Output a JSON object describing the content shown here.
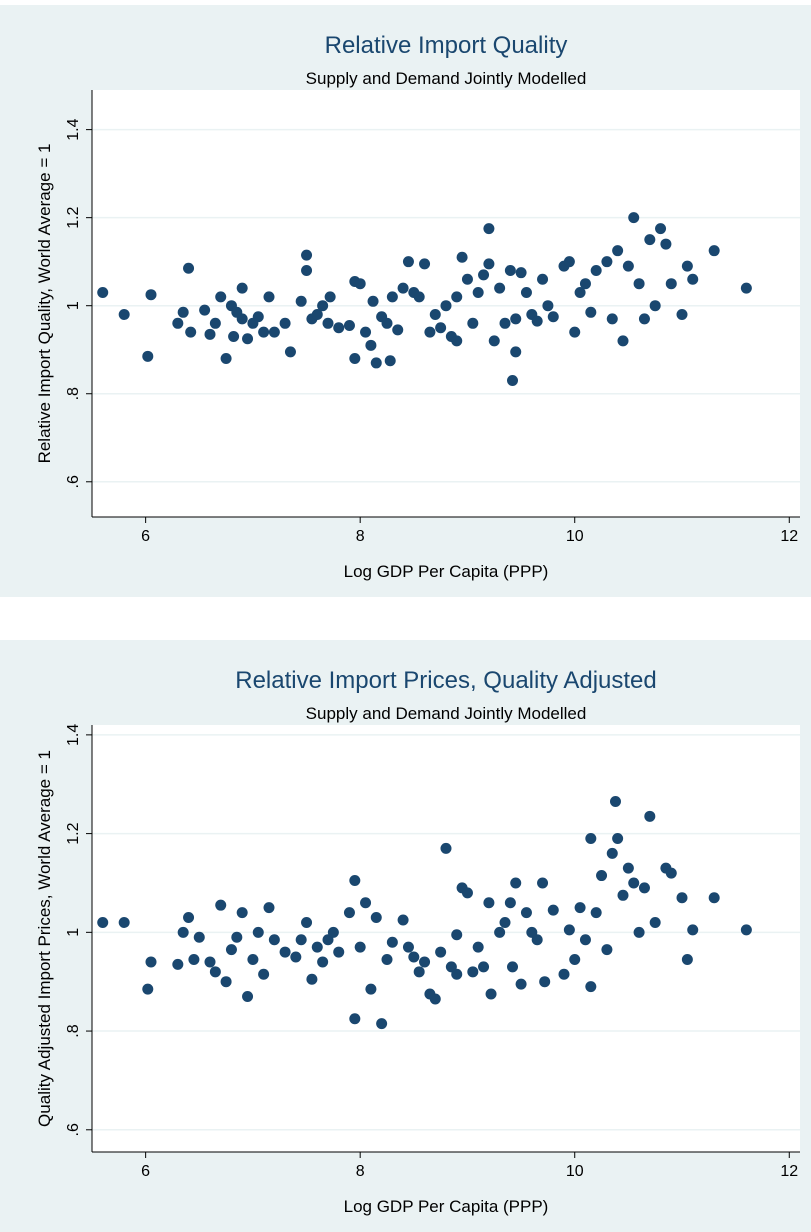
{
  "chart_data": [
    {
      "type": "scatter",
      "title": "Relative Import Quality",
      "subtitle": "Supply and Demand Jointly Modelled",
      "x_label": "Log GDP Per Capita (PPP)",
      "y_label": "Relative Import Quality, World Average = 1",
      "color": "#1a476f",
      "grid": true,
      "xlim": [
        5.5,
        12.1
      ],
      "xticks": [
        6,
        8,
        10,
        12
      ],
      "ylim": [
        0.52,
        1.49
      ],
      "yticks": [
        {
          "value": 0.6,
          "label": ".6"
        },
        {
          "value": 0.8,
          "label": ".8"
        },
        1,
        {
          "value": 1.2,
          "label": "1.2"
        },
        {
          "value": 1.4,
          "label": "1.4"
        }
      ],
      "x": [
        5.6,
        5.8,
        6.02,
        6.05,
        6.3,
        6.35,
        6.4,
        6.42,
        6.55,
        6.6,
        6.65,
        6.7,
        6.75,
        6.8,
        6.82,
        6.85,
        6.9,
        6.9,
        6.95,
        7.0,
        7.05,
        7.1,
        7.15,
        7.2,
        7.3,
        7.35,
        7.45,
        7.5,
        7.5,
        7.55,
        7.6,
        7.65,
        7.7,
        7.72,
        7.8,
        7.9,
        7.95,
        7.95,
        8.0,
        8.05,
        8.1,
        8.12,
        8.15,
        8.2,
        8.25,
        8.28,
        8.3,
        8.35,
        8.4,
        8.45,
        8.5,
        8.55,
        8.6,
        8.65,
        8.7,
        8.75,
        8.8,
        8.85,
        8.9,
        8.95,
        9.0,
        9.05,
        9.1,
        9.15,
        9.2,
        9.2,
        9.25,
        9.3,
        9.35,
        9.4,
        9.42,
        9.45,
        9.5,
        9.55,
        9.6,
        9.65,
        9.7,
        9.75,
        9.8,
        9.9,
        9.95,
        10.0,
        10.05,
        10.1,
        10.15,
        10.2,
        10.3,
        10.35,
        10.4,
        10.45,
        10.5,
        10.55,
        10.6,
        10.65,
        10.7,
        10.75,
        10.8,
        10.85,
        10.9,
        11.0,
        11.05,
        11.3,
        11.6,
        11.1,
        8.9,
        9.45
      ],
      "values": [
        1.03,
        0.98,
        0.885,
        1.025,
        0.96,
        0.985,
        1.085,
        0.94,
        0.99,
        0.935,
        0.96,
        1.02,
        0.88,
        1.0,
        0.93,
        0.985,
        1.04,
        0.97,
        0.925,
        0.96,
        0.975,
        0.94,
        1.02,
        0.94,
        0.96,
        0.895,
        1.01,
        1.115,
        1.08,
        0.97,
        0.98,
        1.0,
        0.96,
        1.02,
        0.95,
        0.955,
        1.055,
        0.88,
        1.05,
        0.94,
        0.91,
        1.01,
        0.87,
        0.975,
        0.96,
        0.875,
        1.02,
        0.945,
        1.04,
        1.1,
        1.03,
        1.02,
        1.095,
        0.94,
        0.98,
        0.95,
        1.0,
        0.93,
        1.02,
        1.11,
        1.06,
        0.96,
        1.03,
        1.07,
        1.175,
        1.095,
        0.92,
        1.04,
        0.96,
        1.08,
        0.83,
        0.895,
        1.075,
        1.03,
        0.98,
        0.965,
        1.06,
        1.0,
        0.975,
        1.09,
        1.1,
        0.94,
        1.03,
        1.05,
        0.985,
        1.08,
        1.1,
        0.97,
        1.125,
        0.92,
        1.09,
        1.2,
        1.05,
        0.97,
        1.15,
        1.0,
        1.175,
        1.14,
        1.05,
        0.98,
        1.09,
        1.125,
        1.04,
        1.06,
        0.92,
        0.97
      ]
    },
    {
      "type": "scatter",
      "title": "Relative Import Prices, Quality Adjusted",
      "subtitle": "Supply and Demand Jointly Modelled",
      "x_label": "Log GDP Per Capita (PPP)",
      "y_label": "Quality Adjusted Import Prices, World Average = 1",
      "color": "#1a476f",
      "grid": true,
      "xlim": [
        5.5,
        12.1
      ],
      "xticks": [
        6,
        8,
        10,
        12
      ],
      "ylim": [
        0.555,
        1.42
      ],
      "yticks": [
        {
          "value": 0.6,
          "label": ".6"
        },
        {
          "value": 0.8,
          "label": ".8"
        },
        1,
        {
          "value": 1.2,
          "label": "1.2"
        },
        {
          "value": 1.4,
          "label": "1.4"
        }
      ],
      "x": [
        5.6,
        5.8,
        6.02,
        6.05,
        6.3,
        6.35,
        6.4,
        6.45,
        6.5,
        6.6,
        6.65,
        6.7,
        6.75,
        6.8,
        6.85,
        6.9,
        6.95,
        7.0,
        7.05,
        7.1,
        7.15,
        7.2,
        7.3,
        7.4,
        7.45,
        7.5,
        7.55,
        7.6,
        7.65,
        7.7,
        7.75,
        7.8,
        7.9,
        7.95,
        7.95,
        8.0,
        8.05,
        8.1,
        8.15,
        8.2,
        8.25,
        8.3,
        8.4,
        8.45,
        8.5,
        8.55,
        8.6,
        8.65,
        8.7,
        8.75,
        8.8,
        8.85,
        8.9,
        8.95,
        9.0,
        9.05,
        9.1,
        9.15,
        9.2,
        9.22,
        9.3,
        9.35,
        9.4,
        9.42,
        9.45,
        9.5,
        9.55,
        9.65,
        9.7,
        9.72,
        9.8,
        9.9,
        9.95,
        10.0,
        10.05,
        10.1,
        10.15,
        10.15,
        10.2,
        10.25,
        10.3,
        10.35,
        10.38,
        10.4,
        10.45,
        10.5,
        10.55,
        10.6,
        10.65,
        10.7,
        10.75,
        10.85,
        10.9,
        11.0,
        11.05,
        11.1,
        11.3,
        11.6,
        8.9,
        9.6
      ],
      "values": [
        1.02,
        1.02,
        0.885,
        0.94,
        0.935,
        1.0,
        1.03,
        0.945,
        0.99,
        0.94,
        0.92,
        1.055,
        0.9,
        0.965,
        0.99,
        1.04,
        0.87,
        0.945,
        1.0,
        0.915,
        1.05,
        0.985,
        0.96,
        0.95,
        0.985,
        1.02,
        0.905,
        0.97,
        0.94,
        0.985,
        1.0,
        0.96,
        1.04,
        1.105,
        0.825,
        0.97,
        1.06,
        0.885,
        1.03,
        0.815,
        0.945,
        0.98,
        1.025,
        0.97,
        0.95,
        0.92,
        0.94,
        0.875,
        0.865,
        0.96,
        1.17,
        0.93,
        0.915,
        1.09,
        1.08,
        0.92,
        0.97,
        0.93,
        1.06,
        0.875,
        1.0,
        1.02,
        1.06,
        0.93,
        1.1,
        0.895,
        1.04,
        0.985,
        1.1,
        0.9,
        1.045,
        0.915,
        1.005,
        0.945,
        1.05,
        0.985,
        0.89,
        1.19,
        1.04,
        1.115,
        0.965,
        1.16,
        1.265,
        1.19,
        1.075,
        1.13,
        1.1,
        1.0,
        1.09,
        1.235,
        1.02,
        1.13,
        1.12,
        1.07,
        0.945,
        1.005,
        1.07,
        1.005,
        0.995,
        1.0
      ]
    }
  ]
}
